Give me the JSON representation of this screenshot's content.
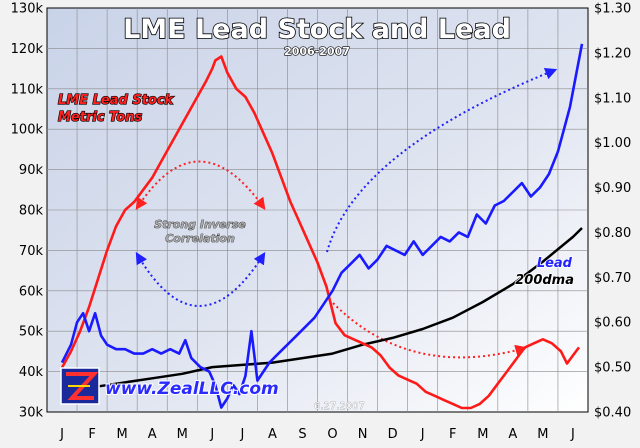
{
  "chart_data": {
    "type": "line",
    "title": "LME Lead Stock and Lead",
    "subtitle": "2006-2007",
    "x_tick_labels": [
      "J",
      "F",
      "M",
      "A",
      "M",
      "J",
      "J",
      "A",
      "S",
      "O",
      "N",
      "D",
      "J",
      "F",
      "M",
      "A",
      "M",
      "J"
    ],
    "left_axis": {
      "ylim": [
        30000,
        130000
      ],
      "tick_labels": [
        "30k",
        "40k",
        "50k",
        "60k",
        "70k",
        "80k",
        "90k",
        "100k",
        "110k",
        "120k",
        "130k"
      ]
    },
    "right_axis": {
      "ylim": [
        0.4,
        1.3
      ],
      "tick_labels": [
        "$0.40",
        "$0.50",
        "$0.60",
        "$0.70",
        "$0.80",
        "$0.90",
        "$1.00",
        "$1.10",
        "$1.20",
        "$1.30"
      ]
    },
    "grid": true,
    "series": [
      {
        "name": "LME Lead Stock Metric Tons",
        "axis": "left",
        "color": "#ff1a1a",
        "points": [
          [
            0.0,
            41000
          ],
          [
            0.3,
            45000
          ],
          [
            0.6,
            50000
          ],
          [
            0.9,
            56000
          ],
          [
            1.2,
            63000
          ],
          [
            1.5,
            70000
          ],
          [
            1.8,
            76000
          ],
          [
            2.1,
            80000
          ],
          [
            2.4,
            82000
          ],
          [
            2.7,
            85000
          ],
          [
            3.0,
            88000
          ],
          [
            3.3,
            92000
          ],
          [
            3.6,
            96000
          ],
          [
            3.9,
            100000
          ],
          [
            4.2,
            104000
          ],
          [
            4.5,
            108000
          ],
          [
            4.8,
            112000
          ],
          [
            5.0,
            115000
          ],
          [
            5.1,
            117000
          ],
          [
            5.3,
            118000
          ],
          [
            5.5,
            114000
          ],
          [
            5.8,
            110000
          ],
          [
            6.1,
            108000
          ],
          [
            6.4,
            104000
          ],
          [
            6.7,
            99000
          ],
          [
            7.0,
            94000
          ],
          [
            7.3,
            88000
          ],
          [
            7.6,
            82000
          ],
          [
            7.9,
            77000
          ],
          [
            8.2,
            72000
          ],
          [
            8.5,
            67000
          ],
          [
            8.8,
            61000
          ],
          [
            9.0,
            55000
          ],
          [
            9.1,
            52000
          ],
          [
            9.4,
            49000
          ],
          [
            9.7,
            48000
          ],
          [
            10.0,
            47000
          ],
          [
            10.3,
            46000
          ],
          [
            10.6,
            44000
          ],
          [
            10.9,
            41000
          ],
          [
            11.2,
            39000
          ],
          [
            11.5,
            38000
          ],
          [
            11.8,
            37000
          ],
          [
            12.1,
            35000
          ],
          [
            12.4,
            34000
          ],
          [
            12.7,
            33000
          ],
          [
            13.0,
            32000
          ],
          [
            13.3,
            31000
          ],
          [
            13.6,
            31000
          ],
          [
            13.9,
            32000
          ],
          [
            14.2,
            34000
          ],
          [
            14.5,
            37000
          ],
          [
            14.8,
            40000
          ],
          [
            15.1,
            43000
          ],
          [
            15.4,
            46000
          ],
          [
            15.7,
            47000
          ],
          [
            16.0,
            48000
          ],
          [
            16.3,
            47000
          ],
          [
            16.6,
            45000
          ],
          [
            16.8,
            42000
          ],
          [
            17.0,
            44000
          ],
          [
            17.2,
            46000
          ]
        ]
      },
      {
        "name": "Lead",
        "axis": "right",
        "color": "#1a1aff",
        "points": [
          [
            0.0,
            0.51
          ],
          [
            0.3,
            0.55
          ],
          [
            0.5,
            0.6
          ],
          [
            0.7,
            0.62
          ],
          [
            0.9,
            0.58
          ],
          [
            1.1,
            0.62
          ],
          [
            1.3,
            0.57
          ],
          [
            1.5,
            0.55
          ],
          [
            1.8,
            0.54
          ],
          [
            2.1,
            0.54
          ],
          [
            2.4,
            0.53
          ],
          [
            2.7,
            0.53
          ],
          [
            3.0,
            0.54
          ],
          [
            3.3,
            0.53
          ],
          [
            3.6,
            0.54
          ],
          [
            3.9,
            0.53
          ],
          [
            4.1,
            0.56
          ],
          [
            4.3,
            0.52
          ],
          [
            4.6,
            0.5
          ],
          [
            4.9,
            0.49
          ],
          [
            5.1,
            0.46
          ],
          [
            5.3,
            0.41
          ],
          [
            5.5,
            0.43
          ],
          [
            5.7,
            0.46
          ],
          [
            5.9,
            0.44
          ],
          [
            6.1,
            0.48
          ],
          [
            6.3,
            0.58
          ],
          [
            6.5,
            0.47
          ],
          [
            6.7,
            0.49
          ],
          [
            6.9,
            0.51
          ],
          [
            7.2,
            0.53
          ],
          [
            7.5,
            0.55
          ],
          [
            7.8,
            0.57
          ],
          [
            8.1,
            0.59
          ],
          [
            8.4,
            0.61
          ],
          [
            8.7,
            0.64
          ],
          [
            9.0,
            0.67
          ],
          [
            9.3,
            0.71
          ],
          [
            9.6,
            0.73
          ],
          [
            9.9,
            0.75
          ],
          [
            10.2,
            0.72
          ],
          [
            10.5,
            0.74
          ],
          [
            10.8,
            0.77
          ],
          [
            11.1,
            0.76
          ],
          [
            11.4,
            0.75
          ],
          [
            11.7,
            0.78
          ],
          [
            12.0,
            0.75
          ],
          [
            12.3,
            0.77
          ],
          [
            12.6,
            0.79
          ],
          [
            12.9,
            0.78
          ],
          [
            13.2,
            0.8
          ],
          [
            13.5,
            0.79
          ],
          [
            13.8,
            0.84
          ],
          [
            14.1,
            0.82
          ],
          [
            14.4,
            0.86
          ],
          [
            14.7,
            0.87
          ],
          [
            15.0,
            0.89
          ],
          [
            15.3,
            0.91
          ],
          [
            15.6,
            0.88
          ],
          [
            15.9,
            0.9
          ],
          [
            16.2,
            0.93
          ],
          [
            16.5,
            0.98
          ],
          [
            16.7,
            1.03
          ],
          [
            16.9,
            1.08
          ],
          [
            17.1,
            1.15
          ],
          [
            17.3,
            1.22
          ]
        ]
      },
      {
        "name": "Lead 200dma",
        "axis": "right",
        "color": "#000000",
        "points": [
          [
            0.0,
            0.44
          ],
          [
            1.0,
            0.455
          ],
          [
            2.0,
            0.465
          ],
          [
            3.0,
            0.475
          ],
          [
            4.0,
            0.485
          ],
          [
            5.0,
            0.5
          ],
          [
            6.0,
            0.505
          ],
          [
            7.0,
            0.51
          ],
          [
            8.0,
            0.52
          ],
          [
            9.0,
            0.53
          ],
          [
            10.0,
            0.55
          ],
          [
            11.0,
            0.565
          ],
          [
            12.0,
            0.585
          ],
          [
            13.0,
            0.61
          ],
          [
            14.0,
            0.645
          ],
          [
            15.0,
            0.685
          ],
          [
            16.0,
            0.735
          ],
          [
            17.0,
            0.79
          ],
          [
            17.3,
            0.81
          ]
        ]
      }
    ],
    "annotations": {
      "stock_label_line1": "LME Lead Stock",
      "stock_label_line2": "Metric Tons",
      "correlation_line1": "Strong Inverse",
      "correlation_line2": "Correlation",
      "lead_label": "Lead",
      "dma_label": "200dma",
      "website": "www.ZealLLC.com",
      "date": "6.27.2007"
    }
  }
}
